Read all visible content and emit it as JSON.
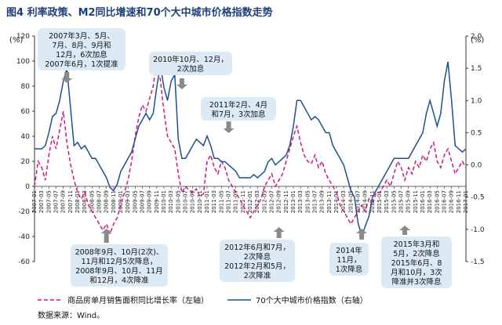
{
  "figure": {
    "title": "图4   利率政策、M2同比增速和70个大中城市价格指数走势",
    "source": "数据来源：Wind。",
    "left_unit": "(%)",
    "right_unit": "(%)"
  },
  "chart_data": {
    "type": "line",
    "title": "图4   利率政策、M2同比增速和70个大中城市价格指数走势",
    "left_axis": {
      "ylim": [
        -60,
        120
      ],
      "ticks": [
        -60,
        -40,
        -20,
        0,
        20,
        40,
        60,
        80,
        100,
        120
      ]
    },
    "right_axis": {
      "ylim": [
        -1.5,
        2.0
      ],
      "ticks": [
        -1.5,
        -1.0,
        -0.5,
        0.0,
        0.5,
        1.0,
        1.5,
        2.0
      ]
    },
    "x_start": "2007-01",
    "x_end": "2017-01",
    "x_tick_labels": [
      "2007-01",
      "2007-03",
      "2007-05",
      "2007-07",
      "2007-09",
      "2007-11",
      "2008-01",
      "2008-03",
      "2008-05",
      "2008-07",
      "2008-09",
      "2008-11",
      "2009-01",
      "2009-03",
      "2009-05",
      "2009-07",
      "2009-09",
      "2009-11",
      "2010-01",
      "2010-03",
      "2010-05",
      "2010-07",
      "2010-09",
      "2010-11",
      "2011-01",
      "2011-03",
      "2011-05",
      "2011-07",
      "2011-09",
      "2011-11",
      "2012-01",
      "2012-03",
      "2012-05",
      "2012-07",
      "2012-09",
      "2012-11",
      "2013-01",
      "2013-03",
      "2013-05",
      "2013-07",
      "2013-09",
      "2013-11",
      "2014-01",
      "2014-03",
      "2014-05",
      "2014-07",
      "2014-09",
      "2014-11",
      "2015-01",
      "2015-03",
      "2015-05",
      "2015-07",
      "2015-09",
      "2015-11",
      "2016-01",
      "2016-03",
      "2016-05",
      "2016-07",
      "2016-09",
      "2016-11",
      "2017-01"
    ],
    "series": [
      {
        "name": "商品房单月销售面积同比增长率（左轴）",
        "axis": "left",
        "color": "#d6157e",
        "style": "dashed",
        "points": [
          [
            "2007-01",
            0
          ],
          [
            "2007-02",
            20
          ],
          [
            "2007-03",
            15
          ],
          [
            "2007-04",
            5
          ],
          [
            "2007-05",
            25
          ],
          [
            "2007-06",
            40
          ],
          [
            "2007-07",
            30
          ],
          [
            "2007-08",
            45
          ],
          [
            "2007-09",
            60
          ],
          [
            "2007-10",
            35
          ],
          [
            "2007-11",
            18
          ],
          [
            "2007-12",
            5
          ],
          [
            "2008-01",
            -5
          ],
          [
            "2008-02",
            -10
          ],
          [
            "2008-03",
            -5
          ],
          [
            "2008-04",
            -15
          ],
          [
            "2008-05",
            -20
          ],
          [
            "2008-06",
            -25
          ],
          [
            "2008-07",
            -30
          ],
          [
            "2008-08",
            -35
          ],
          [
            "2008-09",
            -30
          ],
          [
            "2008-10",
            -38
          ],
          [
            "2008-11",
            -30
          ],
          [
            "2008-12",
            -25
          ],
          [
            "2009-01",
            -15
          ],
          [
            "2009-02",
            -5
          ],
          [
            "2009-03",
            5
          ],
          [
            "2009-04",
            20
          ],
          [
            "2009-05",
            40
          ],
          [
            "2009-06",
            55
          ],
          [
            "2009-07",
            65
          ],
          [
            "2009-08",
            60
          ],
          [
            "2009-09",
            70
          ],
          [
            "2009-10",
            80
          ],
          [
            "2009-11",
            100
          ],
          [
            "2009-12",
            85
          ],
          [
            "2010-01",
            60
          ],
          [
            "2010-02",
            40
          ],
          [
            "2010-03",
            35
          ],
          [
            "2010-04",
            30
          ],
          [
            "2010-05",
            10
          ],
          [
            "2010-06",
            -5
          ],
          [
            "2010-07",
            0
          ],
          [
            "2010-08",
            -3
          ],
          [
            "2010-09",
            -5
          ],
          [
            "2010-10",
            -2
          ],
          [
            "2010-11",
            -8
          ],
          [
            "2010-12",
            -6
          ],
          [
            "2011-01",
            20
          ],
          [
            "2011-02",
            25
          ],
          [
            "2011-03",
            15
          ],
          [
            "2011-04",
            10
          ],
          [
            "2011-05",
            20
          ],
          [
            "2011-06",
            15
          ],
          [
            "2011-07",
            5
          ],
          [
            "2011-08",
            0
          ],
          [
            "2011-09",
            -5
          ],
          [
            "2011-10",
            -10
          ],
          [
            "2011-11",
            -15
          ],
          [
            "2011-12",
            -20
          ],
          [
            "2012-01",
            -25
          ],
          [
            "2012-02",
            -20
          ],
          [
            "2012-03",
            -15
          ],
          [
            "2012-04",
            -10
          ],
          [
            "2012-05",
            0
          ],
          [
            "2012-06",
            5
          ],
          [
            "2012-07",
            10
          ],
          [
            "2012-08",
            0
          ],
          [
            "2012-09",
            5
          ],
          [
            "2012-10",
            10
          ],
          [
            "2012-11",
            20
          ],
          [
            "2012-12",
            30
          ],
          [
            "2013-01",
            40
          ],
          [
            "2013-02",
            48
          ],
          [
            "2013-03",
            35
          ],
          [
            "2013-04",
            25
          ],
          [
            "2013-05",
            20
          ],
          [
            "2013-06",
            18
          ],
          [
            "2013-07",
            25
          ],
          [
            "2013-08",
            15
          ],
          [
            "2013-09",
            20
          ],
          [
            "2013-10",
            10
          ],
          [
            "2013-11",
            5
          ],
          [
            "2013-12",
            0
          ],
          [
            "2014-01",
            -5
          ],
          [
            "2014-02",
            -15
          ],
          [
            "2014-03",
            -20
          ],
          [
            "2014-04",
            -25
          ],
          [
            "2014-05",
            -30
          ],
          [
            "2014-06",
            -25
          ],
          [
            "2014-07",
            -20
          ],
          [
            "2014-08",
            -15
          ],
          [
            "2014-09",
            -20
          ],
          [
            "2014-10",
            -10
          ],
          [
            "2014-11",
            -15
          ],
          [
            "2014-12",
            -5
          ],
          [
            "2015-01",
            -5
          ],
          [
            "2015-02",
            0
          ],
          [
            "2015-03",
            5
          ],
          [
            "2015-04",
            0
          ],
          [
            "2015-05",
            10
          ],
          [
            "2015-06",
            20
          ],
          [
            "2015-07",
            15
          ],
          [
            "2015-08",
            5
          ],
          [
            "2015-09",
            15
          ],
          [
            "2015-10",
            10
          ],
          [
            "2015-11",
            20
          ],
          [
            "2015-12",
            15
          ],
          [
            "2016-01",
            25
          ],
          [
            "2016-02",
            20
          ],
          [
            "2016-03",
            30
          ],
          [
            "2016-04",
            35
          ],
          [
            "2016-05",
            20
          ],
          [
            "2016-06",
            15
          ],
          [
            "2016-07",
            25
          ],
          [
            "2016-08",
            30
          ],
          [
            "2016-09",
            20
          ],
          [
            "2016-10",
            10
          ],
          [
            "2016-11",
            15
          ],
          [
            "2016-12",
            20
          ],
          [
            "2017-01",
            15
          ]
        ]
      },
      {
        "name": "70个大中城市价格指数（右轴）",
        "axis": "right",
        "color": "#1d4f91",
        "style": "solid",
        "points": [
          [
            "2007-01",
            0.25
          ],
          [
            "2007-02",
            0.25
          ],
          [
            "2007-03",
            0.25
          ],
          [
            "2007-04",
            0.3
          ],
          [
            "2007-05",
            0.5
          ],
          [
            "2007-06",
            0.75
          ],
          [
            "2007-07",
            0.8
          ],
          [
            "2007-08",
            1.0
          ],
          [
            "2007-09",
            1.3
          ],
          [
            "2007-10",
            1.5
          ],
          [
            "2007-11",
            0.9
          ],
          [
            "2007-12",
            0.3
          ],
          [
            "2008-01",
            0.35
          ],
          [
            "2008-02",
            0.25
          ],
          [
            "2008-03",
            0.3
          ],
          [
            "2008-04",
            0.2
          ],
          [
            "2008-05",
            0.1
          ],
          [
            "2008-06",
            0.1
          ],
          [
            "2008-07",
            0.0
          ],
          [
            "2008-08",
            -0.1
          ],
          [
            "2008-09",
            -0.2
          ],
          [
            "2008-10",
            -0.35
          ],
          [
            "2008-11",
            -0.4
          ],
          [
            "2008-12",
            -0.3
          ],
          [
            "2009-01",
            -0.1
          ],
          [
            "2009-02",
            0.0
          ],
          [
            "2009-03",
            0.1
          ],
          [
            "2009-04",
            0.2
          ],
          [
            "2009-05",
            0.4
          ],
          [
            "2009-06",
            0.6
          ],
          [
            "2009-07",
            0.7
          ],
          [
            "2009-08",
            0.8
          ],
          [
            "2009-09",
            0.7
          ],
          [
            "2009-10",
            0.8
          ],
          [
            "2009-11",
            1.2
          ],
          [
            "2009-12",
            1.55
          ],
          [
            "2010-01",
            1.2
          ],
          [
            "2010-02",
            1.0
          ],
          [
            "2010-03",
            1.3
          ],
          [
            "2010-04",
            1.4
          ],
          [
            "2010-05",
            0.4
          ],
          [
            "2010-06",
            0.1
          ],
          [
            "2010-07",
            0.1
          ],
          [
            "2010-08",
            0.2
          ],
          [
            "2010-09",
            0.3
          ],
          [
            "2010-10",
            0.4
          ],
          [
            "2010-11",
            0.35
          ],
          [
            "2010-12",
            0.3
          ],
          [
            "2011-01",
            0.45
          ],
          [
            "2011-02",
            0.3
          ],
          [
            "2011-03",
            0.1
          ],
          [
            "2011-04",
            0.1
          ],
          [
            "2011-05",
            0.05
          ],
          [
            "2011-06",
            0.05
          ],
          [
            "2011-07",
            0.0
          ],
          [
            "2011-08",
            -0.05
          ],
          [
            "2011-09",
            -0.1
          ],
          [
            "2011-10",
            -0.2
          ],
          [
            "2011-11",
            -0.2
          ],
          [
            "2011-12",
            -0.2
          ],
          [
            "2012-01",
            -0.2
          ],
          [
            "2012-02",
            -0.15
          ],
          [
            "2012-03",
            -0.2
          ],
          [
            "2012-04",
            -0.15
          ],
          [
            "2012-05",
            -0.1
          ],
          [
            "2012-06",
            0.05
          ],
          [
            "2012-07",
            0.1
          ],
          [
            "2012-08",
            0.0
          ],
          [
            "2012-09",
            0.05
          ],
          [
            "2012-10",
            0.1
          ],
          [
            "2012-11",
            0.15
          ],
          [
            "2012-12",
            0.3
          ],
          [
            "2013-01",
            0.6
          ],
          [
            "2013-02",
            1.0
          ],
          [
            "2013-03",
            1.0
          ],
          [
            "2013-04",
            0.9
          ],
          [
            "2013-05",
            0.8
          ],
          [
            "2013-06",
            0.7
          ],
          [
            "2013-07",
            0.75
          ],
          [
            "2013-08",
            0.7
          ],
          [
            "2013-09",
            0.6
          ],
          [
            "2013-10",
            0.5
          ],
          [
            "2013-11",
            0.5
          ],
          [
            "2013-12",
            0.3
          ],
          [
            "2014-01",
            0.2
          ],
          [
            "2014-02",
            0.1
          ],
          [
            "2014-03",
            0.0
          ],
          [
            "2014-04",
            -0.2
          ],
          [
            "2014-05",
            -0.4
          ],
          [
            "2014-06",
            -0.5
          ],
          [
            "2014-07",
            -0.9
          ],
          [
            "2014-08",
            -1.1
          ],
          [
            "2014-09",
            -0.95
          ],
          [
            "2014-10",
            -0.8
          ],
          [
            "2014-11",
            -0.5
          ],
          [
            "2014-12",
            -0.4
          ],
          [
            "2015-01",
            -0.3
          ],
          [
            "2015-02",
            -0.2
          ],
          [
            "2015-03",
            -0.1
          ],
          [
            "2015-04",
            0.0
          ],
          [
            "2015-05",
            0.1
          ],
          [
            "2015-06",
            0.1
          ],
          [
            "2015-07",
            0.1
          ],
          [
            "2015-08",
            0.1
          ],
          [
            "2015-09",
            0.1
          ],
          [
            "2015-10",
            0.2
          ],
          [
            "2015-11",
            0.3
          ],
          [
            "2015-12",
            0.4
          ],
          [
            "2016-01",
            0.5
          ],
          [
            "2016-02",
            0.8
          ],
          [
            "2016-03",
            1.0
          ],
          [
            "2016-04",
            0.8
          ],
          [
            "2016-05",
            0.6
          ],
          [
            "2016-06",
            0.8
          ],
          [
            "2016-07",
            1.3
          ],
          [
            "2016-08",
            1.6
          ],
          [
            "2016-09",
            1.0
          ],
          [
            "2016-10",
            0.3
          ],
          [
            "2016-11",
            0.25
          ],
          [
            "2016-12",
            0.2
          ],
          [
            "2017-01",
            0.25
          ]
        ]
      }
    ],
    "annotations": [
      {
        "id": "a2007",
        "lines": [
          "2007年3月、5月、",
          "7月、8月、9月和",
          "12月，6次加息",
          "2007年6月，1次提准"
        ]
      },
      {
        "id": "a2010",
        "lines": [
          "2010年10月、12月，",
          "2次加息"
        ]
      },
      {
        "id": "a2011",
        "lines": [
          "2011年2月、4月",
          "和7月，3次加息"
        ]
      },
      {
        "id": "a2008",
        "lines": [
          "2008年9月、10月(2次)、",
          "11月和12月5次降息，",
          "2008年9月、10月、11月",
          "和12月，4次降准"
        ]
      },
      {
        "id": "a2012",
        "lines": [
          "2012年6月和7月，",
          "2次降息",
          "2012年2月和5月，",
          "2次降准"
        ]
      },
      {
        "id": "a2014",
        "lines": [
          "2014年",
          "11月，",
          "1次降息"
        ]
      },
      {
        "id": "a2015",
        "lines": [
          "2015年3月和",
          "5月，2次降息",
          "2015年6月、8",
          "月和10月，3次",
          "降准并3次降息"
        ]
      }
    ]
  },
  "legend": {
    "items": [
      {
        "label": "商品房单月销售面积同比增长率（左轴）",
        "style": "dashed",
        "color": "#d6157e"
      },
      {
        "label": "70个大中城市价格指数（右轴）",
        "style": "solid",
        "color": "#1d4f91"
      }
    ]
  }
}
